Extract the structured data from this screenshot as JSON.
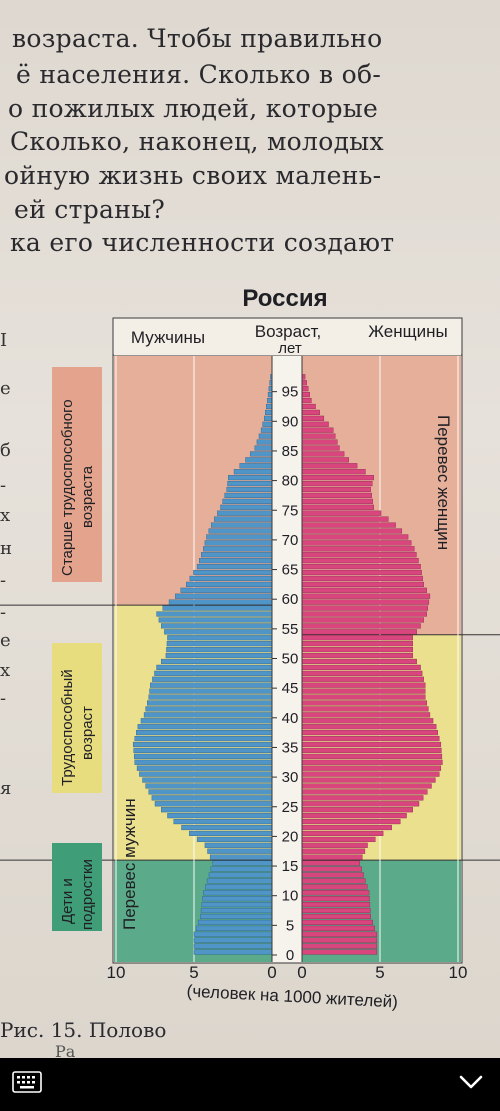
{
  "page_text": {
    "lines": [
      "возраста. Чтобы правильно",
      "ё населения. Сколько в об-",
      "о пожилых людей, которые",
      "Сколько, наконец, молодых",
      "ойную жизнь своих малень-",
      "ей страны?",
      "ка его численности создают"
    ],
    "margin_marks": [
      "I",
      "e",
      "б",
      "-",
      "x",
      "н",
      "-",
      "-",
      "e",
      "x",
      "-",
      "я"
    ],
    "caption": "Рис. 15. Полово",
    "caption_cont": "Ра"
  },
  "chart_data": {
    "type": "population-pyramid",
    "title": "Россия",
    "left_label": "Мужчины",
    "right_label": "Женщины",
    "center_label_line1": "Возраст,",
    "center_label_line2": "лет",
    "xlabel": "(человек на 1000 жителей)",
    "x_ticks_left": [
      "10",
      "5",
      "0"
    ],
    "x_ticks_right": [
      "0",
      "5",
      "10"
    ],
    "xlim": [
      0,
      11
    ],
    "ylim": [
      0,
      100
    ],
    "age_ticks": [
      "0",
      "5",
      "10",
      "15",
      "20",
      "25",
      "30",
      "35",
      "40",
      "45",
      "50",
      "55",
      "60",
      "65",
      "70",
      "75",
      "80",
      "85",
      "90",
      "95"
    ],
    "zones": [
      {
        "label": "Дети и подростки",
        "color": "#3f9e78"
      },
      {
        "label": "Трудоспособный возраст",
        "color": "#e7dd7e"
      },
      {
        "label": "Старше трудоспособного возраста",
        "color": "#e3a38c"
      }
    ],
    "zone_bounds_male": {
      "working_from": 16,
      "working_to": 59
    },
    "zone_bounds_female": {
      "working_from": 16,
      "working_to": 54
    },
    "annotations": {
      "male_excess": "Перевес мужчин",
      "female_excess": "Перевес женщин"
    },
    "male_color": "#4f95c8",
    "female_color": "#d9467e",
    "male_keypoints": {
      "ages": [
        0,
        3,
        6,
        10,
        15,
        18,
        20,
        22,
        25,
        28,
        30,
        32,
        35,
        38,
        40,
        43,
        45,
        48,
        50,
        53,
        55,
        57,
        60,
        62,
        65,
        68,
        70,
        72,
        75,
        78,
        80,
        83,
        85,
        88,
        90,
        93,
        95,
        97
      ],
      "values": [
        5.0,
        5.0,
        4.6,
        4.4,
        3.8,
        4.3,
        5.3,
        6.3,
        7.5,
        8.1,
        8.5,
        8.8,
        8.9,
        8.6,
        8.2,
        7.9,
        7.8,
        7.4,
        6.8,
        6.7,
        7.1,
        7.4,
        6.2,
        5.5,
        4.8,
        4.4,
        4.2,
        3.9,
        3.3,
        2.9,
        2.8,
        1.7,
        1.1,
        0.7,
        0.5,
        0.3,
        0.2,
        0.1
      ]
    },
    "female_keypoints": {
      "ages": [
        0,
        3,
        6,
        10,
        15,
        18,
        20,
        22,
        25,
        28,
        30,
        32,
        35,
        38,
        40,
        43,
        45,
        48,
        50,
        53,
        55,
        57,
        60,
        62,
        65,
        68,
        70,
        72,
        75,
        78,
        80,
        83,
        85,
        88,
        90,
        93,
        95,
        97
      ],
      "values": [
        4.8,
        4.8,
        4.4,
        4.3,
        3.7,
        4.2,
        5.2,
        6.3,
        7.5,
        8.3,
        8.8,
        9.0,
        8.9,
        8.6,
        8.2,
        7.9,
        7.9,
        7.6,
        7.1,
        7.1,
        7.6,
        8.0,
        8.2,
        7.8,
        7.6,
        7.2,
        6.8,
        6.0,
        4.6,
        4.4,
        4.6,
        3.0,
        2.4,
        2.0,
        1.4,
        0.6,
        0.4,
        0.2
      ]
    }
  },
  "nav": {
    "keyboard_icon": "keyboard-icon",
    "chevron_icon": "chevron-down-icon"
  }
}
